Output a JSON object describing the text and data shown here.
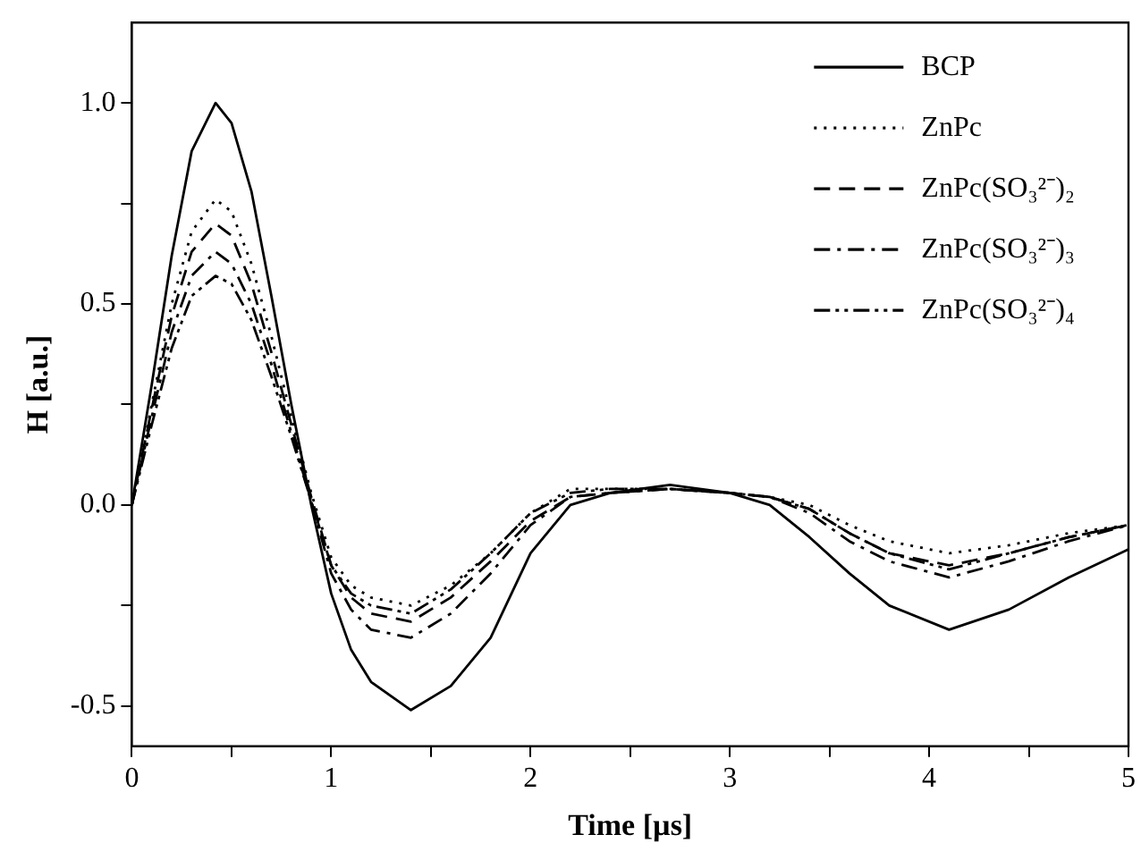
{
  "chart_data": {
    "type": "line",
    "xlabel": "Time [µs]",
    "ylabel": "H [a.u.]",
    "x": [
      0,
      0.1,
      0.2,
      0.3,
      0.42,
      0.5,
      0.6,
      0.7,
      0.8,
      0.9,
      1.0,
      1.1,
      1.2,
      1.4,
      1.6,
      1.8,
      2.0,
      2.2,
      2.4,
      2.7,
      3.0,
      3.2,
      3.4,
      3.6,
      3.8,
      4.1,
      4.4,
      4.7,
      5.0
    ],
    "series": [
      {
        "name": "BCP",
        "color": "#000000",
        "line_style": "solid",
        "values": [
          0,
          0.3,
          0.62,
          0.88,
          1.0,
          0.95,
          0.78,
          0.52,
          0.25,
          0.0,
          -0.22,
          -0.36,
          -0.44,
          -0.51,
          -0.45,
          -0.33,
          -0.12,
          0.0,
          0.03,
          0.05,
          0.03,
          0.0,
          -0.08,
          -0.17,
          -0.25,
          -0.31,
          -0.26,
          -0.18,
          -0.11
        ]
      },
      {
        "name": "ZnPc",
        "color": "#000000",
        "line_style": "dotted",
        "values": [
          0,
          0.25,
          0.5,
          0.68,
          0.76,
          0.73,
          0.6,
          0.42,
          0.22,
          0.03,
          -0.13,
          -0.2,
          -0.23,
          -0.25,
          -0.2,
          -0.12,
          -0.02,
          0.04,
          0.04,
          0.04,
          0.03,
          0.02,
          0.0,
          -0.05,
          -0.09,
          -0.12,
          -0.1,
          -0.07,
          -0.05
        ]
      },
      {
        "name": "ZnPc(SO₃²⁻)₂",
        "color": "#000000",
        "line_style": "dashed",
        "values": [
          0,
          0.24,
          0.47,
          0.63,
          0.7,
          0.67,
          0.55,
          0.38,
          0.2,
          0.02,
          -0.15,
          -0.23,
          -0.27,
          -0.29,
          -0.23,
          -0.14,
          -0.04,
          0.02,
          0.03,
          0.04,
          0.03,
          0.02,
          -0.01,
          -0.07,
          -0.12,
          -0.15,
          -0.12,
          -0.08,
          -0.05
        ]
      },
      {
        "name": "ZnPc(SO₃²⁻)₃",
        "color": "#000000",
        "line_style": "dashdot",
        "values": [
          0,
          0.22,
          0.43,
          0.57,
          0.63,
          0.6,
          0.5,
          0.35,
          0.18,
          0.01,
          -0.17,
          -0.26,
          -0.31,
          -0.33,
          -0.27,
          -0.17,
          -0.05,
          0.02,
          0.03,
          0.04,
          0.03,
          0.02,
          -0.02,
          -0.09,
          -0.14,
          -0.18,
          -0.14,
          -0.09,
          -0.05
        ]
      },
      {
        "name": "ZnPc(SO₃²⁻)₄",
        "color": "#000000",
        "line_style": "dashdotdot",
        "values": [
          0,
          0.2,
          0.39,
          0.52,
          0.57,
          0.55,
          0.46,
          0.32,
          0.17,
          0.01,
          -0.15,
          -0.22,
          -0.25,
          -0.27,
          -0.21,
          -0.12,
          -0.02,
          0.03,
          0.04,
          0.04,
          0.03,
          0.02,
          -0.01,
          -0.07,
          -0.12,
          -0.16,
          -0.12,
          -0.08,
          -0.05
        ]
      }
    ],
    "xlim": [
      0,
      5
    ],
    "xticks": [
      0,
      {
        "value": 0.5,
        "label": null
      },
      1,
      {
        "value": 1.5,
        "label": null
      },
      2,
      {
        "value": 2.5,
        "label": null
      },
      3,
      {
        "value": 3.5,
        "label": null
      },
      4,
      {
        "value": 4.5,
        "label": null
      },
      5
    ],
    "ylim": [
      -0.6,
      1.2
    ],
    "yticks": [
      {
        "value": -0.5,
        "label": "-0.5"
      },
      {
        "value": -0.25,
        "label": null
      },
      {
        "value": 0,
        "label": "0.0"
      },
      {
        "value": 0.25,
        "label": null
      },
      {
        "value": 0.5,
        "label": "0.5"
      },
      {
        "value": 0.75,
        "label": null
      },
      {
        "value": 1,
        "label": "1.0"
      }
    ],
    "grid": false,
    "legend": "top right",
    "marker": "none"
  }
}
